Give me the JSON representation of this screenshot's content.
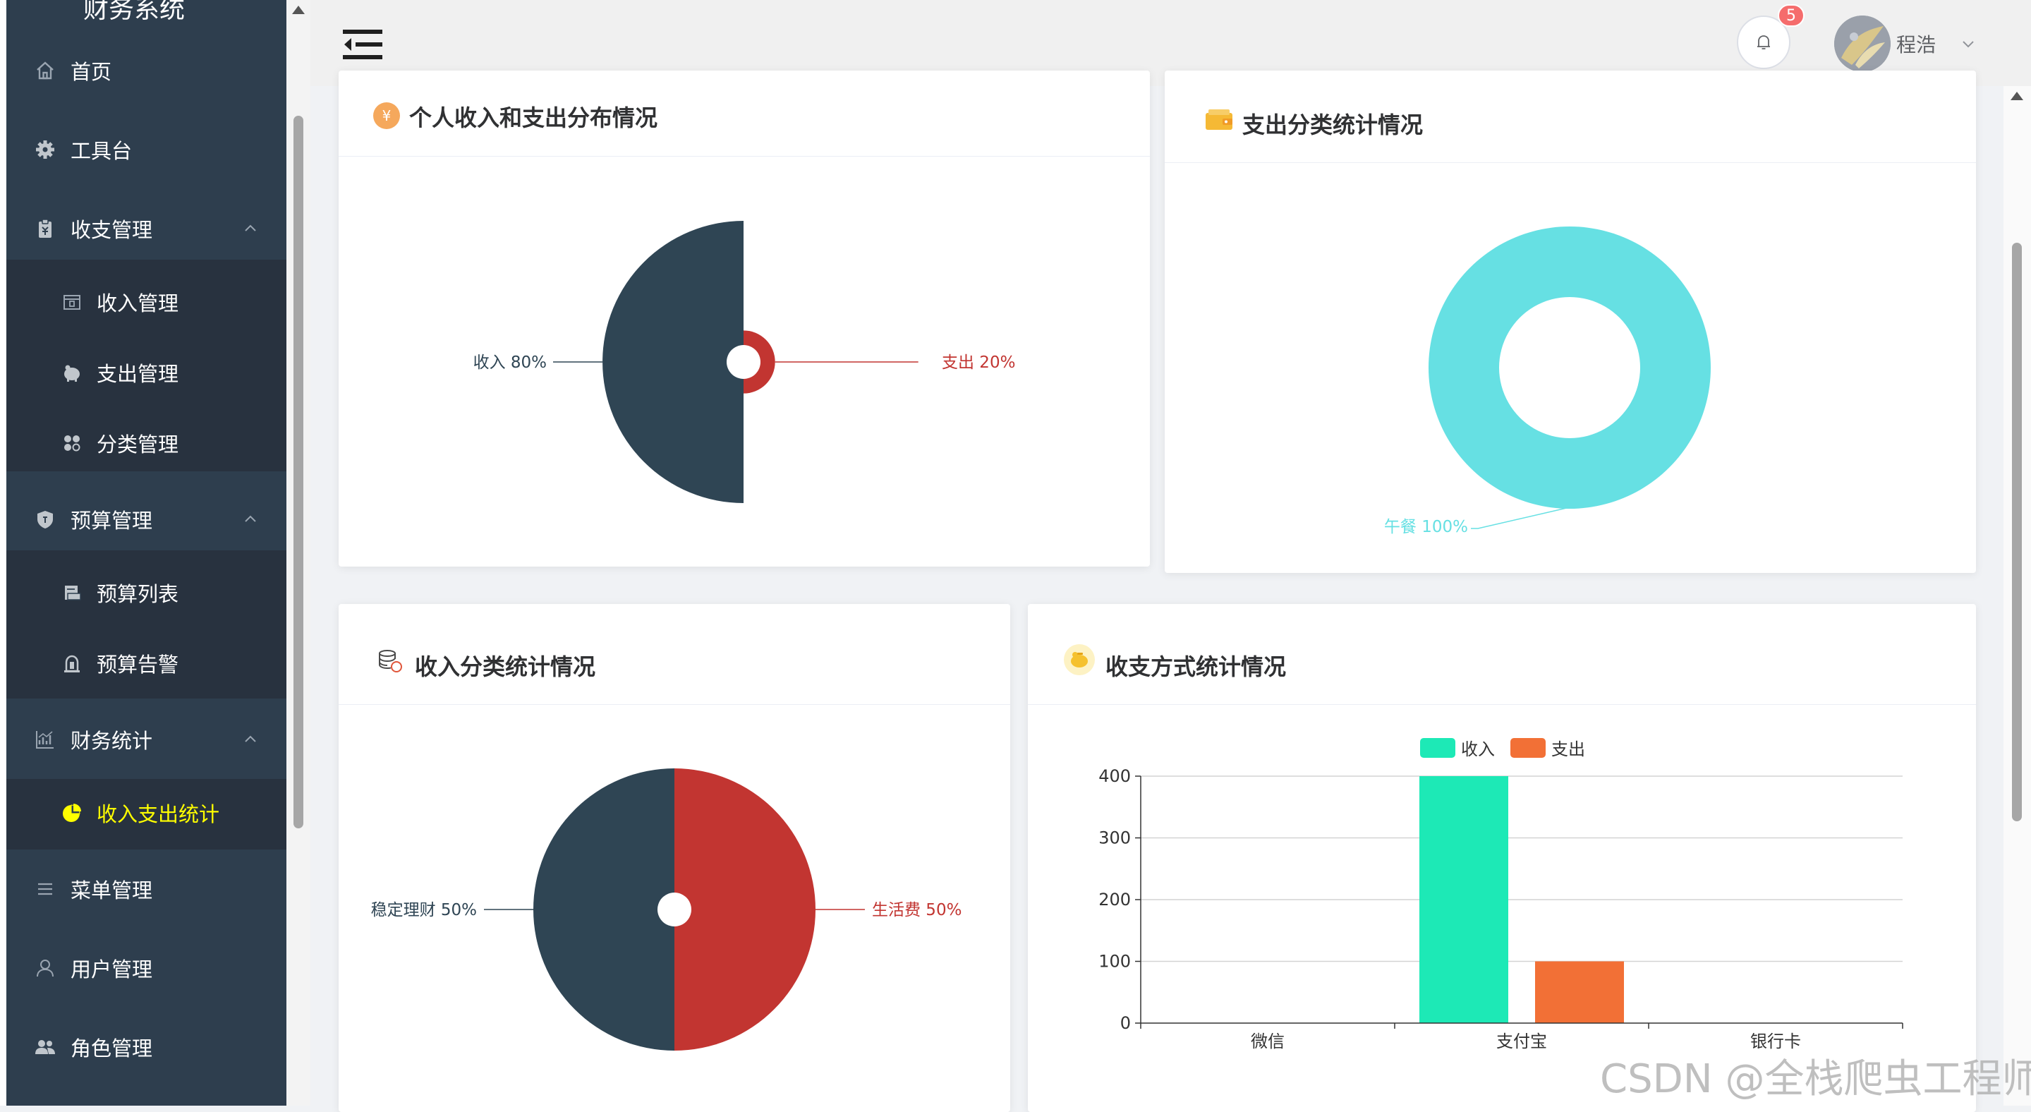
{
  "app": {
    "title": "财务系统"
  },
  "sidebar": {
    "items": [
      {
        "label": "首页",
        "icon": "home-icon"
      },
      {
        "label": "工具台",
        "icon": "gear-icon"
      },
      {
        "label": "收支管理",
        "icon": "clipboard-icon",
        "expanded": true,
        "children": [
          {
            "label": "收入管理",
            "icon": "calendar-icon"
          },
          {
            "label": "支出管理",
            "icon": "piggy-bank-icon"
          },
          {
            "label": "分类管理",
            "icon": "category-icon"
          }
        ]
      },
      {
        "label": "预算管理",
        "icon": "shield-icon",
        "expanded": true,
        "children": [
          {
            "label": "预算列表",
            "icon": "printer-icon"
          },
          {
            "label": "预算告警",
            "icon": "alarm-icon"
          }
        ]
      },
      {
        "label": "财务统计",
        "icon": "stats-icon",
        "expanded": true,
        "children": [
          {
            "label": "收入支出统计",
            "icon": "pie-chart-icon",
            "active": true
          }
        ]
      },
      {
        "label": "菜单管理",
        "icon": "menu-icon"
      },
      {
        "label": "用户管理",
        "icon": "user-icon"
      },
      {
        "label": "角色管理",
        "icon": "users-icon"
      }
    ]
  },
  "header": {
    "notification_count": "5",
    "username": "程浩"
  },
  "cards": {
    "income_expense": {
      "title": "个人收入和支出分布情况"
    },
    "expense_category": {
      "title": "支出分类统计情况"
    },
    "income_category": {
      "title": "收入分类统计情况"
    },
    "payment_method": {
      "title": "收支方式统计情况"
    }
  },
  "chart_data": [
    {
      "type": "pie",
      "subtype": "rose",
      "slices": [
        {
          "name": "收入",
          "value": 80,
          "label": "收入 80%",
          "color": "#2f4554"
        },
        {
          "name": "支出",
          "value": 20,
          "label": "支出 20%",
          "color": "#c23531"
        }
      ]
    },
    {
      "type": "pie",
      "subtype": "donut",
      "slices": [
        {
          "name": "午餐",
          "value": 100,
          "label": "午餐 100%",
          "color": "#66e0e3"
        }
      ]
    },
    {
      "type": "pie",
      "slices": [
        {
          "name": "稳定理财",
          "value": 50,
          "label": "稳定理财 50%",
          "color": "#2f4554"
        },
        {
          "name": "生活费",
          "value": 50,
          "label": "生活费 50%",
          "color": "#c23531"
        }
      ]
    },
    {
      "type": "bar",
      "categories": [
        "微信",
        "支付宝",
        "银行卡"
      ],
      "series": [
        {
          "name": "收入",
          "values": [
            0,
            400,
            0
          ],
          "color": "#1de9b6"
        },
        {
          "name": "支出",
          "values": [
            0,
            100,
            0
          ],
          "color": "#f27036"
        }
      ],
      "yticks": [
        "0",
        "100",
        "200",
        "300",
        "400"
      ],
      "ylim": [
        0,
        400
      ],
      "legend": "top-center",
      "grid": true
    }
  ],
  "watermark": "CSDN @全栈爬虫工程师"
}
